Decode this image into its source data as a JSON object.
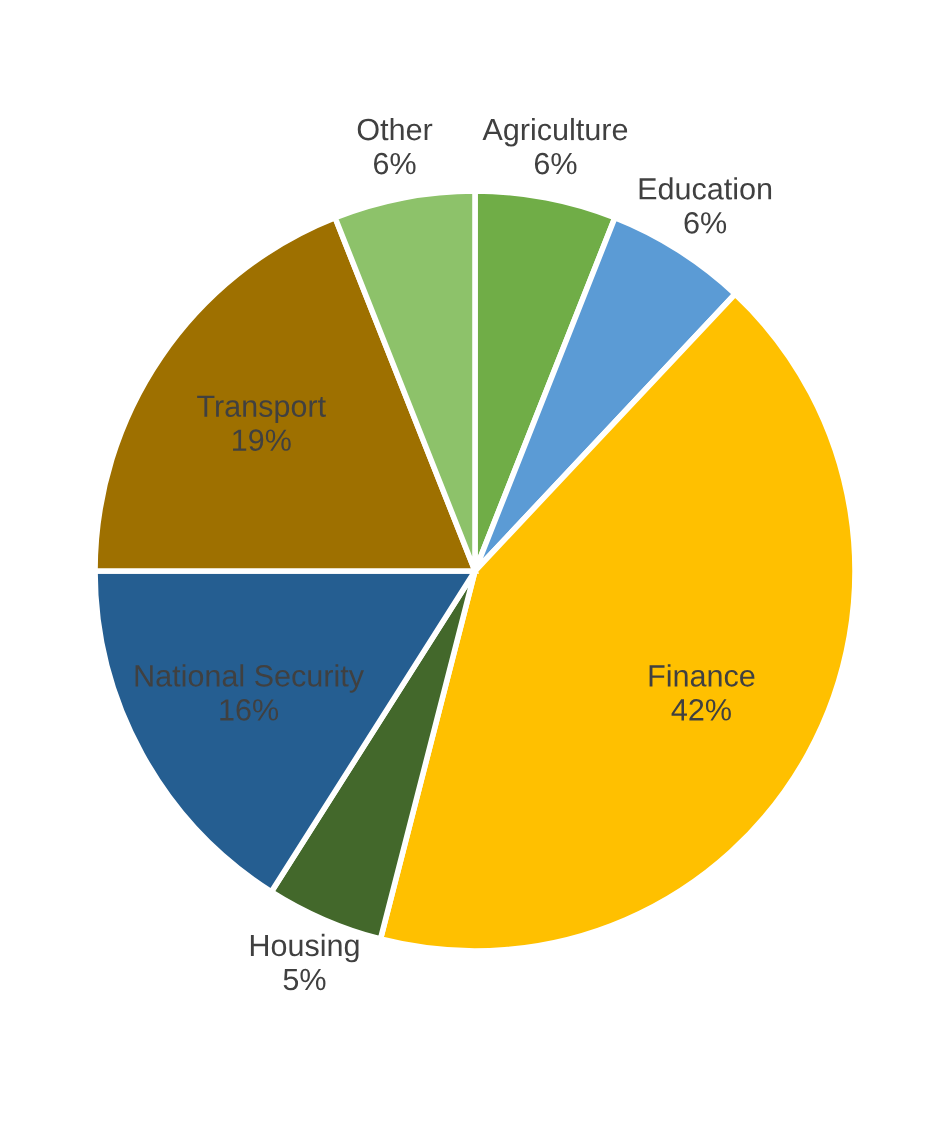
{
  "chart_data": {
    "type": "pie",
    "categories": [
      "Agriculture",
      "Education",
      "Finance",
      "Housing",
      "National Security",
      "Transport",
      "Other"
    ],
    "values": [
      6,
      6,
      42,
      5,
      16,
      19,
      6
    ],
    "colors": [
      "#70ad47",
      "#5b9bd5",
      "#ffc000",
      "#43682b",
      "#255e91",
      "#9e7000",
      "#8dc26a"
    ],
    "value_labels": [
      "6%",
      "6%",
      "42%",
      "5%",
      "16%",
      "19%",
      "6%"
    ]
  }
}
